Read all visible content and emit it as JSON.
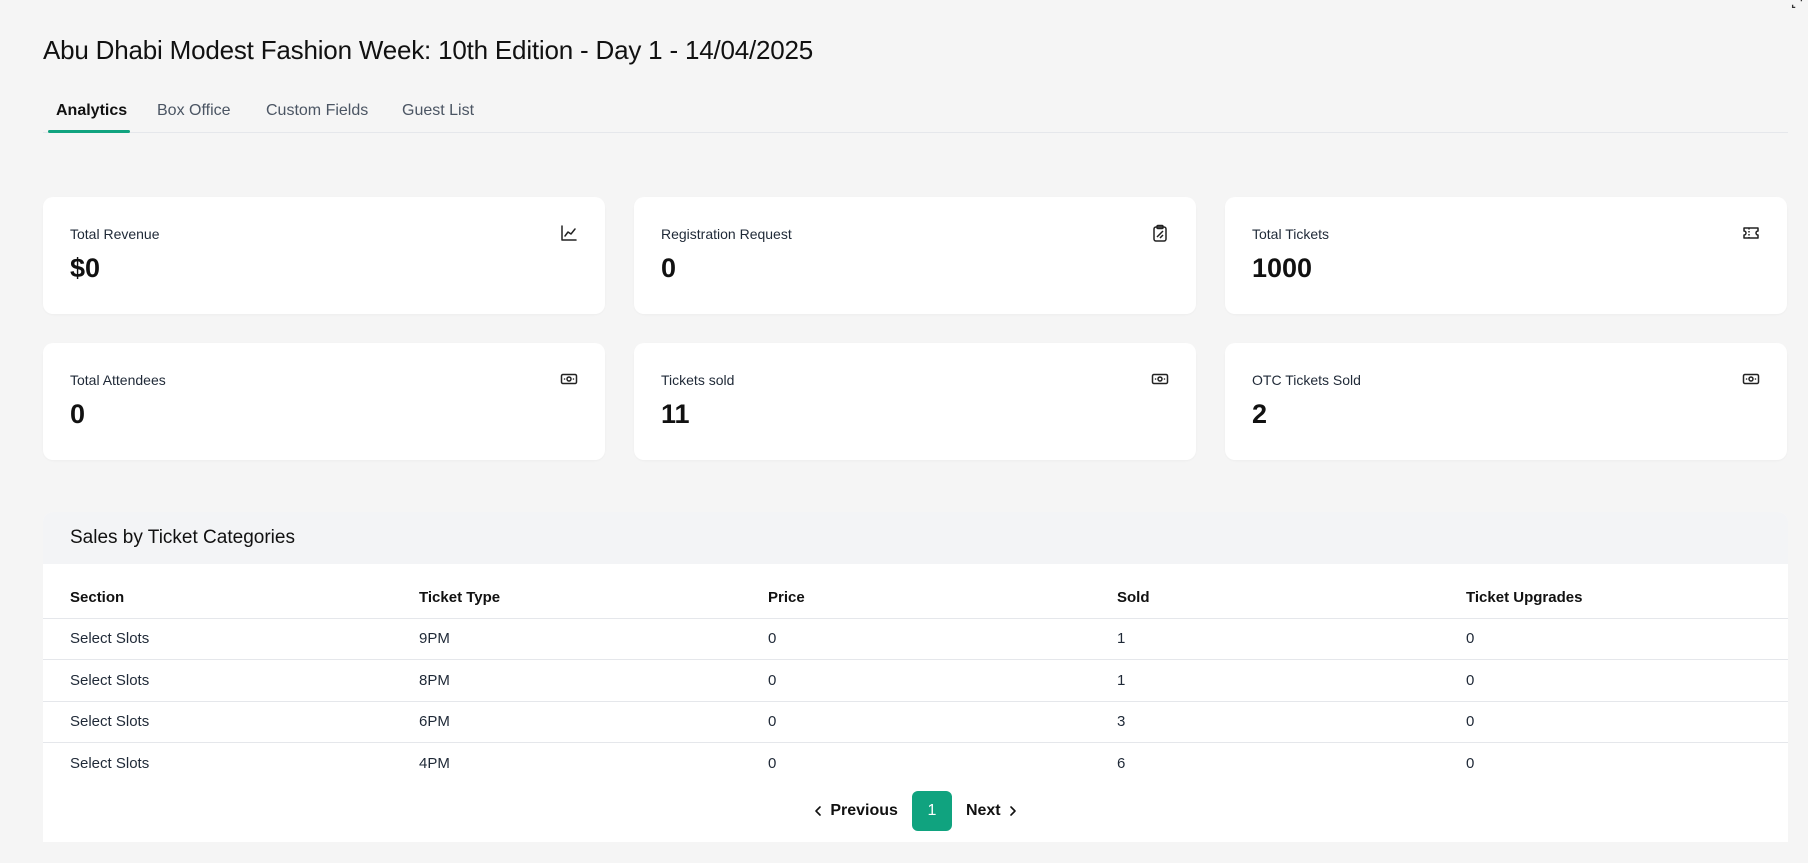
{
  "page": {
    "title": "Abu Dhabi Modest Fashion Week: 10th Edition - Day 1 - 14/04/2025"
  },
  "tabs": [
    {
      "label": "Analytics",
      "active": true
    },
    {
      "label": "Box Office",
      "active": false
    },
    {
      "label": "Custom Fields",
      "active": false
    },
    {
      "label": "Guest List",
      "active": false
    }
  ],
  "stats": [
    {
      "label": "Total Revenue",
      "value": "$0",
      "icon": "chart-line-icon"
    },
    {
      "label": "Registration Request",
      "value": "0",
      "icon": "clipboard-icon"
    },
    {
      "label": "Total Tickets",
      "value": "1000",
      "icon": "ticket-icon"
    },
    {
      "label": "Total Attendees",
      "value": "0",
      "icon": "banknote-icon"
    },
    {
      "label": "Tickets sold",
      "value": "11",
      "icon": "banknote-icon"
    },
    {
      "label": "OTC Tickets Sold",
      "value": "2",
      "icon": "banknote-icon"
    }
  ],
  "sales": {
    "title": "Sales by Ticket Categories",
    "columns": [
      "Section",
      "Ticket Type",
      "Price",
      "Sold",
      "Ticket Upgrades"
    ],
    "rows": [
      [
        "Select Slots",
        "9PM",
        "0",
        "1",
        "0"
      ],
      [
        "Select Slots",
        "8PM",
        "0",
        "1",
        "0"
      ],
      [
        "Select Slots",
        "6PM",
        "0",
        "3",
        "0"
      ],
      [
        "Select Slots",
        "4PM",
        "0",
        "6",
        "0"
      ]
    ]
  },
  "pagination": {
    "previous_label": "Previous",
    "current_page": "1",
    "next_label": "Next"
  },
  "colors": {
    "accent": "#10a37f",
    "background": "#f5f5f5"
  }
}
